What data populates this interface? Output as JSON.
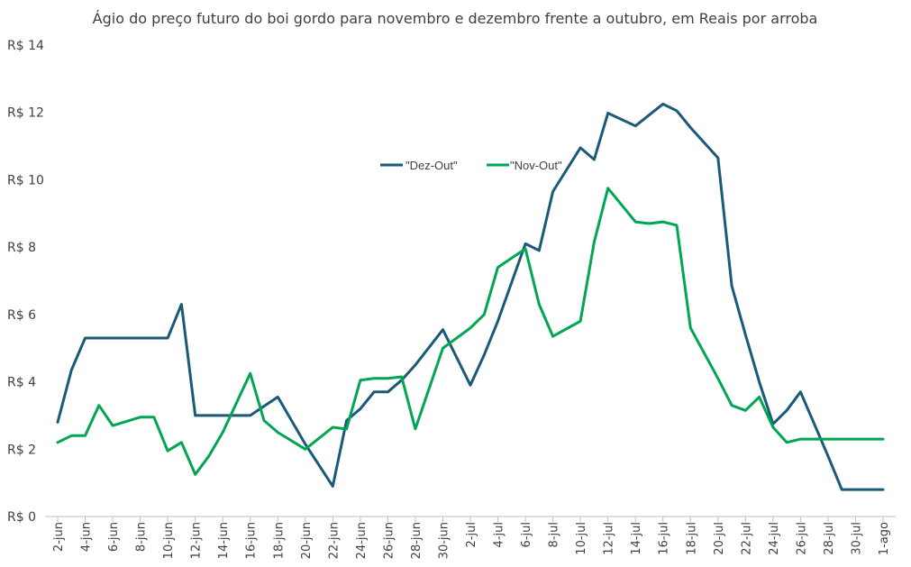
{
  "chart_data": {
    "type": "line",
    "title": "Ágio do preço futuro do boi gordo para novembro e dezembro frente a outubro, em Reais por arroba",
    "xlabel": "",
    "ylabel": "",
    "ylim": [
      0,
      14
    ],
    "yticks": [
      0,
      2,
      4,
      6,
      8,
      10,
      12,
      14
    ],
    "ytick_labels": [
      "R$ 0",
      "R$ 2",
      "R$ 4",
      "R$ 6",
      "R$ 8",
      "R$ 10",
      "R$ 12",
      "R$ 14"
    ],
    "grid": false,
    "legend_position": "top-center-right",
    "x_tick_labels": [
      "2-jun",
      "4-jun",
      "6-jun",
      "8-jun",
      "10-jun",
      "12-jun",
      "14-jun",
      "16-jun",
      "18-jun",
      "20-jun",
      "22-jun",
      "24-jun",
      "26-jun",
      "28-jun",
      "30-jun",
      "2-jul",
      "4-jul",
      "6-jul",
      "8-jul",
      "10-jul",
      "12-jul",
      "14-jul",
      "16-jul",
      "18-jul",
      "20-jul",
      "22-jul",
      "24-jul",
      "26-jul",
      "28-jul",
      "30-jul",
      "1-ago"
    ],
    "x_index_range": [
      0,
      30
    ],
    "series": [
      {
        "name": "\"Dez-Out\"",
        "color": "#1a5a78",
        "x": [
          0,
          0.5,
          1,
          2,
          3,
          3.5,
          4,
          4.5,
          5,
          6,
          7,
          8,
          9,
          10,
          10.5,
          11,
          11.5,
          12,
          12.5,
          13,
          14,
          15,
          15.5,
          16,
          17,
          17.5,
          18,
          19,
          19.5,
          20,
          21,
          22,
          22.5,
          23,
          24,
          24.5,
          25,
          25.5,
          26,
          26.5,
          27,
          28,
          28.5,
          29,
          29.5,
          30
        ],
        "values": [
          2.8,
          4.35,
          5.3,
          5.3,
          5.3,
          5.3,
          5.3,
          6.3,
          3.0,
          3.0,
          3.0,
          3.55,
          2.15,
          0.9,
          2.85,
          3.2,
          3.7,
          3.7,
          4.05,
          4.5,
          5.55,
          3.9,
          4.8,
          5.8,
          8.1,
          7.9,
          9.65,
          10.95,
          10.6,
          11.98,
          11.6,
          12.25,
          12.05,
          11.55,
          10.65,
          6.85,
          5.4,
          4.0,
          2.75,
          3.15,
          3.7,
          1.8,
          0.8,
          0.8,
          0.8,
          0.8
        ]
      },
      {
        "name": "\"Nov-Out\"",
        "color": "#00a651",
        "x": [
          0,
          0.5,
          1,
          1.5,
          2,
          3,
          3.5,
          4,
          4.5,
          5,
          5.5,
          6,
          7,
          7.5,
          8,
          9,
          10,
          10.5,
          11,
          11.5,
          12,
          12.5,
          13,
          14,
          15,
          15.5,
          16,
          17,
          17.5,
          18,
          19,
          19.5,
          20,
          21,
          21.5,
          22,
          22.5,
          23,
          24,
          24.5,
          25,
          25.5,
          26,
          26.5,
          27,
          28,
          28.5,
          29,
          29.5,
          30
        ],
        "values": [
          2.2,
          2.4,
          2.4,
          3.3,
          2.7,
          2.95,
          2.95,
          1.95,
          2.2,
          1.25,
          1.8,
          2.5,
          4.25,
          2.85,
          2.5,
          2.0,
          2.65,
          2.6,
          4.05,
          4.1,
          4.1,
          4.15,
          2.6,
          5.0,
          5.6,
          6.0,
          7.4,
          7.95,
          6.3,
          5.35,
          5.8,
          8.15,
          9.75,
          8.75,
          8.7,
          8.75,
          8.65,
          5.6,
          4.1,
          3.3,
          3.15,
          3.55,
          2.65,
          2.2,
          2.3,
          2.3,
          2.3,
          2.3,
          2.3,
          2.3
        ]
      }
    ]
  }
}
